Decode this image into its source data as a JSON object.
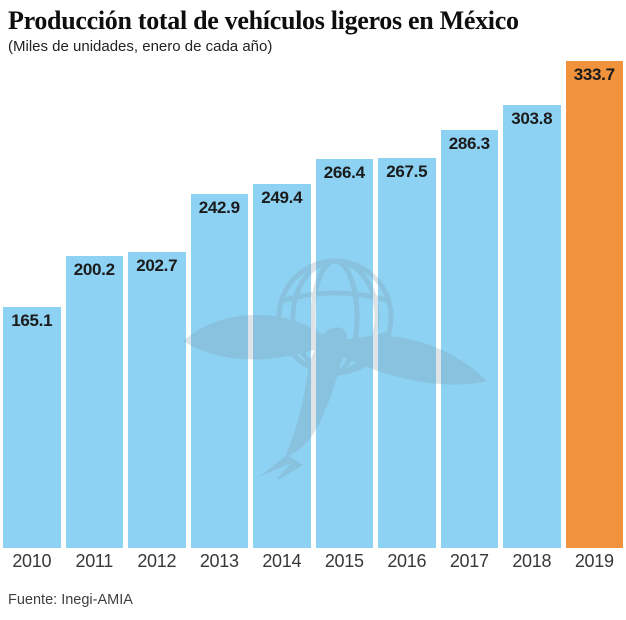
{
  "header": {
    "title": "Producción total de vehículos ligeros en México",
    "subtitle": "(Miles de unidades, enero de cada año)"
  },
  "footer": {
    "source": "Fuente: Inegi-AMIA"
  },
  "watermark": {
    "name": "el-universal-eagle-globe-watermark",
    "color": "#7f95a5"
  },
  "colors": {
    "bar": "#8dd2f3",
    "highlight": "#f1923c",
    "value_label": "#1b1b1b",
    "year_label": "#383838",
    "background": "#ffffff"
  },
  "chart_data": {
    "type": "bar",
    "title": "Producción total de vehículos ligeros en México",
    "subtitle": "(Miles de unidades, enero de cada año)",
    "xlabel": "",
    "ylabel": "Miles de unidades",
    "categories": [
      "2010",
      "2011",
      "2012",
      "2013",
      "2014",
      "2015",
      "2016",
      "2017",
      "2018",
      "2019"
    ],
    "values": [
      165.1,
      200.2,
      202.7,
      242.9,
      249.4,
      266.4,
      267.5,
      286.3,
      303.8,
      333.7
    ],
    "highlight_index": 9,
    "ylim": [
      0,
      333.7
    ],
    "grid": false,
    "legend": false,
    "value_label_position": "inside-top",
    "source": "Fuente: Inegi-AMIA"
  }
}
